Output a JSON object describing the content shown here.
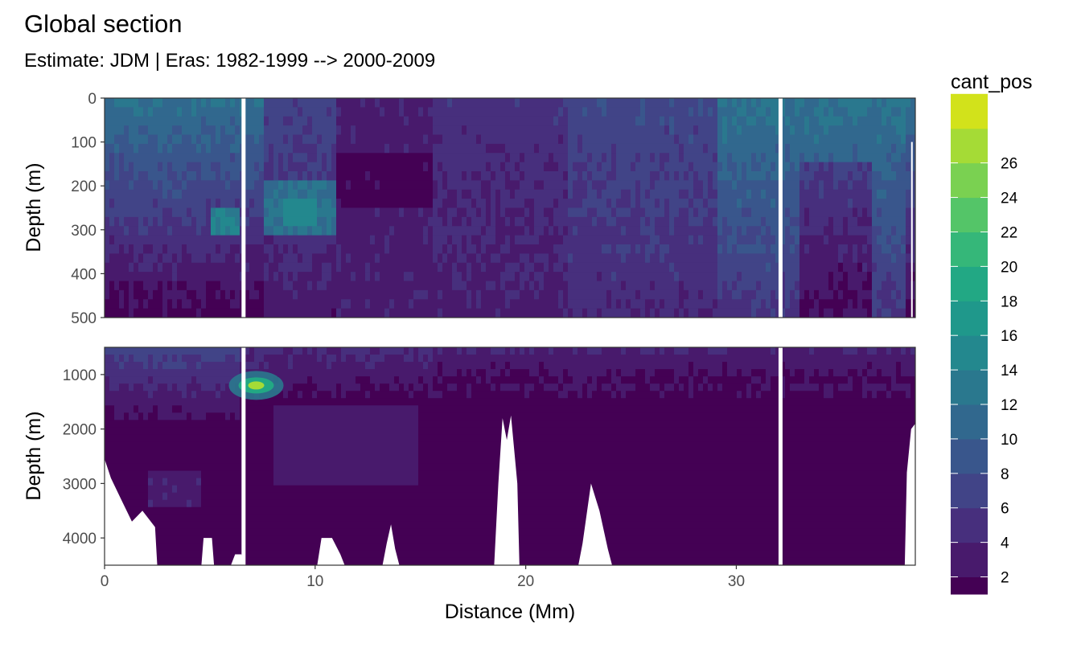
{
  "chart_data": {
    "type": "heatmap",
    "title": "Global section",
    "subtitle": "Estimate: JDM  | Eras: 1982-1999 --> 2000-2009",
    "xlabel": "Distance (Mm)",
    "ylabel": "Depth (m)",
    "x": {
      "range": [
        0,
        38.5
      ],
      "ticks": [
        0,
        10,
        20,
        30
      ],
      "tick_labels": [
        "0",
        "10",
        "20",
        "30"
      ]
    },
    "panels": [
      {
        "name": "upper",
        "ylim": [
          0,
          500
        ],
        "y_reversed": true,
        "y_ticks": [
          0,
          100,
          200,
          300,
          400,
          500
        ],
        "y_tick_labels": [
          "0",
          "100",
          "200",
          "300",
          "400",
          "500"
        ],
        "dominant_value_range": [
          2,
          14
        ]
      },
      {
        "name": "lower",
        "ylim": [
          500,
          4500
        ],
        "y_reversed": true,
        "y_ticks": [
          1000,
          2000,
          3000,
          4000
        ],
        "y_tick_labels": [
          "1000",
          "2000",
          "3000",
          "4000"
        ],
        "dominant_value_range": [
          0,
          6
        ],
        "hotspot": {
          "x": 7.2,
          "depth": 1200,
          "value": 26
        }
      }
    ],
    "data_gaps_x": [
      6.6,
      32.1
    ],
    "legend": {
      "title": "cant_pos",
      "placement": "right",
      "breaks": [
        2,
        4,
        6,
        8,
        10,
        12,
        14,
        16,
        18,
        20,
        22,
        24,
        26
      ],
      "break_labels": [
        "2",
        "4",
        "6",
        "8",
        "10",
        "12",
        "14",
        "16",
        "18",
        "20",
        "22",
        "24",
        "26"
      ],
      "colors": [
        "#440154",
        "#481a6c",
        "#472f7d",
        "#414487",
        "#39568c",
        "#31688e",
        "#2a788e",
        "#23888e",
        "#1f988b",
        "#22a884",
        "#35b779",
        "#54c568",
        "#7ad151",
        "#a5db36",
        "#d2e21b",
        "#fde725"
      ]
    },
    "grid": true
  }
}
